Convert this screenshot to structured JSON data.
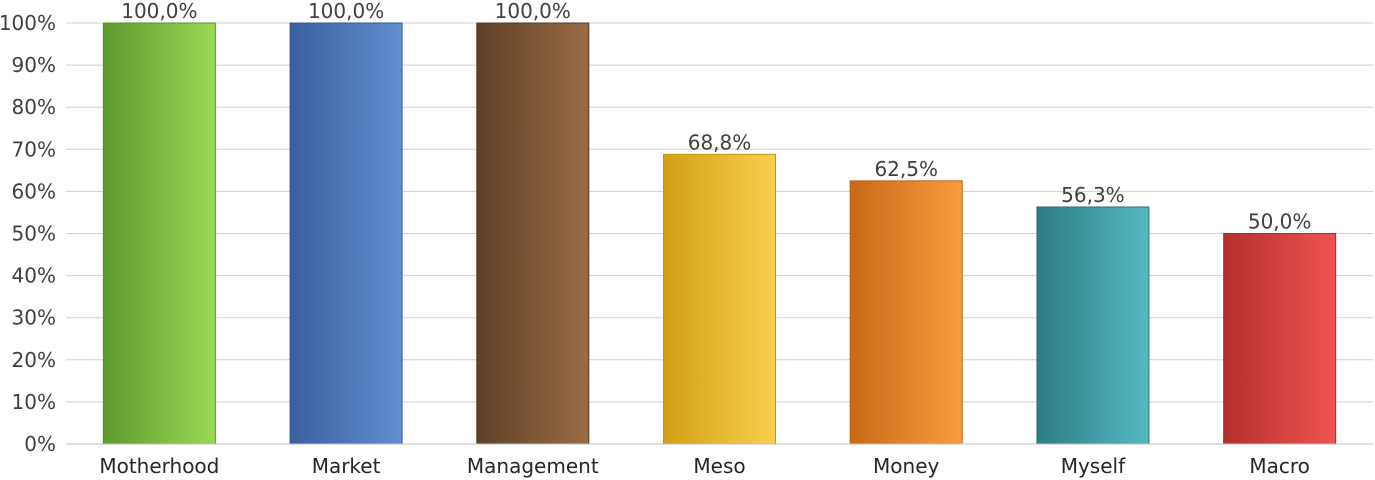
{
  "chart_data": {
    "type": "bar",
    "categories": [
      "Motherhood",
      "Market",
      "Management",
      "Meso",
      "Money",
      "Myself",
      "Macro"
    ],
    "values": [
      100.0,
      100.0,
      100.0,
      68.8,
      62.5,
      56.3,
      50.0
    ],
    "data_labels": [
      "100,0%",
      "100,0%",
      "100,0%",
      "68,8%",
      "62,5%",
      "56,3%",
      "50,0%"
    ],
    "y_ticks": [
      0,
      10,
      20,
      30,
      40,
      50,
      60,
      70,
      80,
      90,
      100
    ],
    "y_tick_labels": [
      "0%",
      "10%",
      "20%",
      "30%",
      "40%",
      "50%",
      "60%",
      "70%",
      "80%",
      "90%",
      "100%"
    ],
    "ylim": [
      0,
      100
    ],
    "grid": true,
    "legend": "none",
    "bar_colors": [
      [
        "#5e9a2e",
        "#9ad957"
      ],
      [
        "#3a5f9e",
        "#628ed0"
      ],
      [
        "#5e4027",
        "#9a6c45"
      ],
      [
        "#d1a014",
        "#f8cf4e"
      ],
      [
        "#c96817",
        "#f89e3d"
      ],
      [
        "#2d7c83",
        "#55b9c4"
      ],
      [
        "#b3302e",
        "#ee5451"
      ]
    ],
    "bar_border_colors": [
      "#5a8f2c",
      "#35588f",
      "#553a24",
      "#c59512",
      "#b95e16",
      "#2a7178",
      "#a52c2a"
    ],
    "gridline_color": "#d0d0d0"
  }
}
